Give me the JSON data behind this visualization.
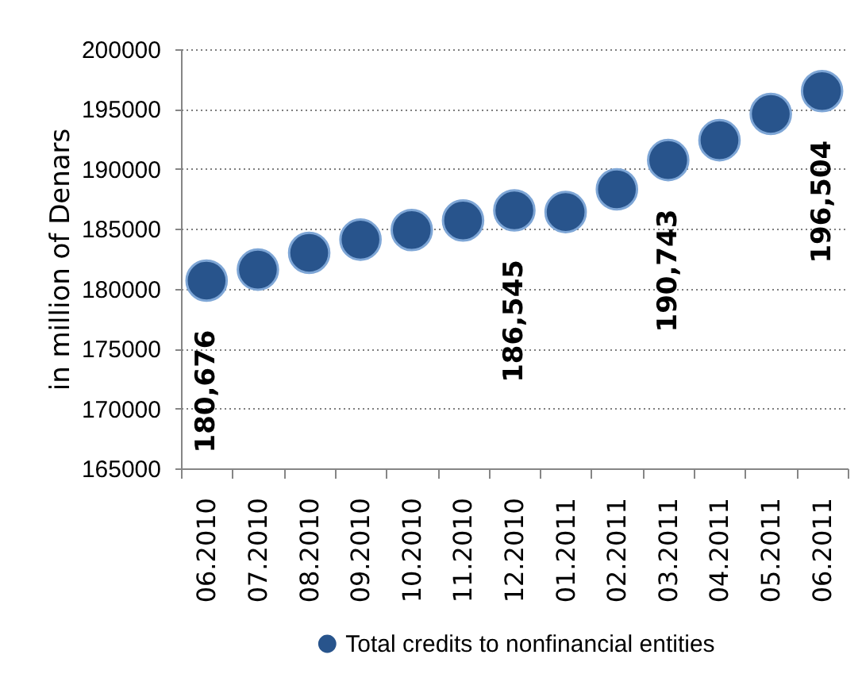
{
  "chart_data": {
    "type": "scatter",
    "ylabel": "in million of Denars",
    "categories": [
      "06.2010",
      "07.2010",
      "08.2010",
      "09.2010",
      "10.2010",
      "11.2010",
      "12.2010",
      "01.2011",
      "02.2011",
      "03.2011",
      "04.2011",
      "05.2011",
      "06.2011"
    ],
    "series": [
      {
        "name": "Total credits to nonfinancial entities",
        "color": "#28548c",
        "values": [
          180676,
          181600,
          183000,
          184100,
          184900,
          185700,
          186545,
          186400,
          188300,
          190743,
          192400,
          194600,
          196504
        ],
        "value_labels": [
          "180,676",
          null,
          null,
          null,
          null,
          null,
          "186,545",
          null,
          null,
          "190,743",
          null,
          null,
          "196,504"
        ]
      }
    ],
    "ylim": [
      165000,
      200000
    ],
    "yticks": [
      165000,
      170000,
      175000,
      180000,
      185000,
      190000,
      195000,
      200000
    ],
    "grid": "y",
    "legend": "bottom",
    "marker": "circle"
  }
}
